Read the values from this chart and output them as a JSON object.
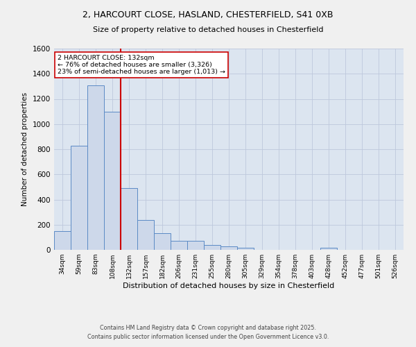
{
  "title_line1": "2, HARCOURT CLOSE, HASLAND, CHESTERFIELD, S41 0XB",
  "title_line2": "Size of property relative to detached houses in Chesterfield",
  "xlabel": "Distribution of detached houses by size in Chesterfield",
  "ylabel": "Number of detached properties",
  "bar_labels": [
    "34sqm",
    "59sqm",
    "83sqm",
    "108sqm",
    "132sqm",
    "157sqm",
    "182sqm",
    "206sqm",
    "231sqm",
    "255sqm",
    "280sqm",
    "305sqm",
    "329sqm",
    "354sqm",
    "378sqm",
    "403sqm",
    "428sqm",
    "452sqm",
    "477sqm",
    "501sqm",
    "526sqm"
  ],
  "bar_values": [
    150,
    830,
    1310,
    1100,
    490,
    235,
    135,
    70,
    70,
    38,
    28,
    15,
    0,
    0,
    0,
    0,
    14,
    0,
    0,
    0,
    0
  ],
  "bar_color": "#cdd8ea",
  "bar_edge_color": "#5b8ac5",
  "vline_color": "#cc0000",
  "annotation_text": "2 HARCOURT CLOSE: 132sqm\n← 76% of detached houses are smaller (3,326)\n23% of semi-detached houses are larger (1,013) →",
  "annotation_box_color": "#ffffff",
  "annotation_edge_color": "#cc0000",
  "ylim": [
    0,
    1600
  ],
  "yticks": [
    0,
    200,
    400,
    600,
    800,
    1000,
    1200,
    1400,
    1600
  ],
  "grid_color": "#bdc8dc",
  "background_color": "#dce5f0",
  "fig_background": "#f0f0f0",
  "footer_line1": "Contains HM Land Registry data © Crown copyright and database right 2025.",
  "footer_line2": "Contains public sector information licensed under the Open Government Licence v3.0."
}
